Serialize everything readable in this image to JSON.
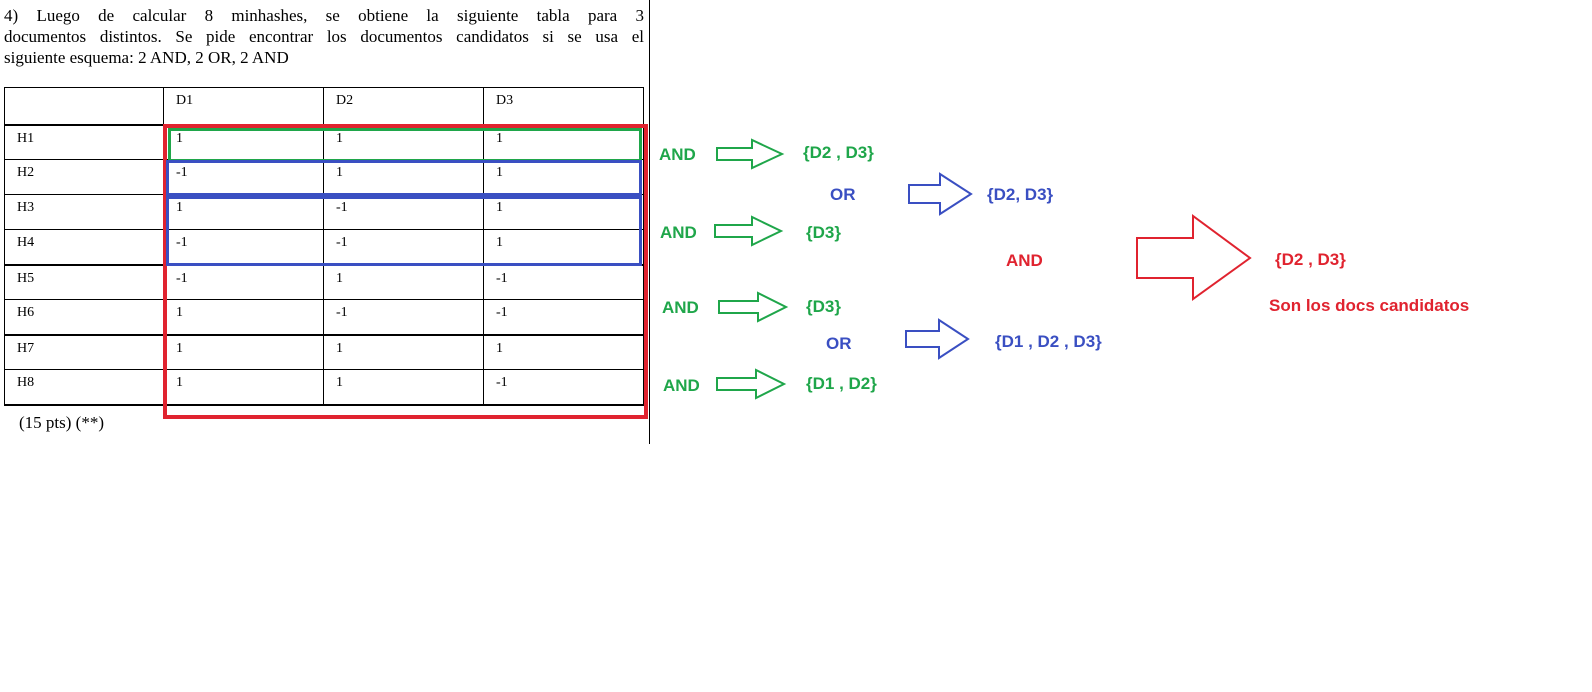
{
  "problem": {
    "line1": "4)   Luego de calcular 8 minhashes, se obtiene la siguiente tabla para 3",
    "line2": "documentos distintos. Se pide encontrar los documentos candidatos si se usa el",
    "line3": "siguiente esquema: 2 AND, 2 OR, 2 AND"
  },
  "table": {
    "headers": [
      "",
      "D1",
      "D2",
      "D3"
    ],
    "rows": [
      {
        "label": "H1",
        "values": [
          "1",
          "1",
          "1"
        ]
      },
      {
        "label": "H2",
        "values": [
          "-1",
          "1",
          "1"
        ]
      },
      {
        "label": "H3",
        "values": [
          "1",
          "-1",
          "1"
        ]
      },
      {
        "label": "H4",
        "values": [
          "-1",
          "-1",
          "1"
        ]
      },
      {
        "label": "H5",
        "values": [
          "-1",
          "1",
          "-1"
        ]
      },
      {
        "label": "H6",
        "values": [
          "1",
          "-1",
          "-1"
        ]
      },
      {
        "label": "H7",
        "values": [
          "1",
          "1",
          "1"
        ]
      },
      {
        "label": "H8",
        "values": [
          "1",
          "1",
          "-1"
        ]
      }
    ]
  },
  "footer": "(15 pts) (**)",
  "annotations": {
    "and1": {
      "op": "AND",
      "result": "{D2 , D3}"
    },
    "or1": {
      "op": "OR",
      "result": "{D2, D3}"
    },
    "and2": {
      "op": "AND",
      "result": "{D3}"
    },
    "final_and": {
      "op": "AND",
      "result": "{D2 , D3}",
      "note": "Son los docs candidatos"
    },
    "and3": {
      "op": "AND",
      "result": "{D3}"
    },
    "or2": {
      "op": "OR",
      "result": "{D1 , D2 , D3}"
    },
    "and4": {
      "op": "AND",
      "result": "{D1 , D2}"
    }
  },
  "colors": {
    "green": "#1fa64a",
    "blue": "#3a4fc2",
    "red": "#e0232f"
  }
}
